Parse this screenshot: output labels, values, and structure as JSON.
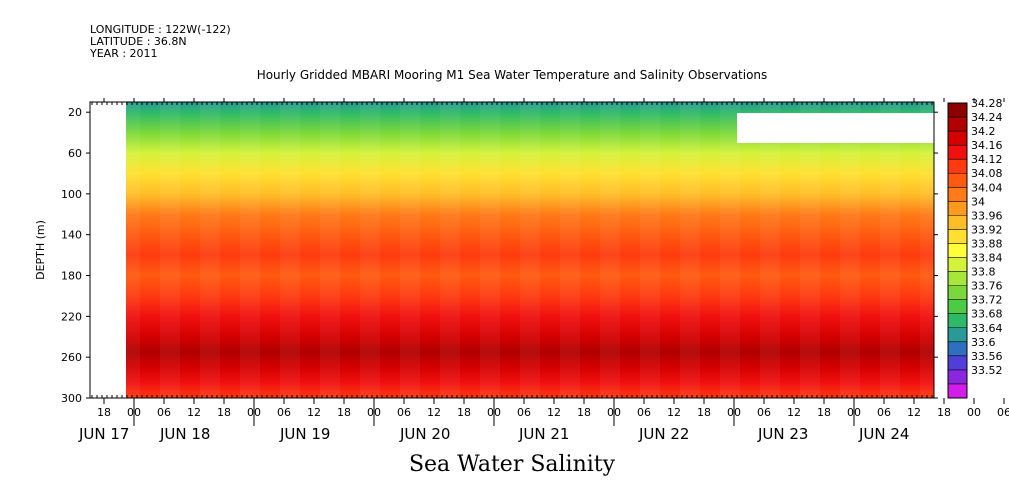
{
  "header": {
    "longitude": "LONGITUDE : 122W(-122)",
    "latitude": "LATITUDE : 36.8N",
    "year": "YEAR : 2011"
  },
  "chart_data": {
    "type": "heatmap",
    "title": "Hourly Gridded MBARI Mooring M1 Sea Water Temperature and Salinity Observations",
    "xlabel": "",
    "ylabel": "DEPTH (m)",
    "footer_label": "Sea Water Salinity",
    "ylim": [
      300,
      10
    ],
    "yticks": [
      20,
      60,
      100,
      140,
      180,
      220,
      260,
      300
    ],
    "x_hour_ticks": [
      "18",
      "00",
      "06",
      "12",
      "18",
      "00",
      "06",
      "12",
      "18",
      "00",
      "06",
      "12",
      "18",
      "00",
      "06",
      "12",
      "18",
      "00",
      "06",
      "12",
      "18",
      "00",
      "06",
      "12",
      "18",
      "00",
      "06",
      "12",
      "18",
      "00",
      "06",
      "12"
    ],
    "x_date_labels": [
      "JUN 17",
      "JUN 18",
      "JUN 19",
      "JUN 20",
      "JUN 21",
      "JUN 22",
      "JUN 23",
      "JUN 24"
    ],
    "colorbar": {
      "levels": [
        34.28,
        34.24,
        34.2,
        34.16,
        34.12,
        34.08,
        34.04,
        34,
        33.96,
        33.92,
        33.88,
        33.84,
        33.8,
        33.76,
        33.72,
        33.68,
        33.64,
        33.6,
        33.56,
        33.52
      ],
      "colors": [
        "#8c0000",
        "#b00000",
        "#d40000",
        "#f01010",
        "#ff3a10",
        "#ff5a10",
        "#ff7a18",
        "#ff9a1e",
        "#ffbe28",
        "#ffe030",
        "#ffff3a",
        "#d4f23a",
        "#a8e63a",
        "#7ad83a",
        "#4ecb44",
        "#2eb86a",
        "#2a9a98",
        "#2f6fc2",
        "#4f3ed8",
        "#8a26e0",
        "#d11ee8"
      ]
    },
    "profile": [
      {
        "depth": 10,
        "value": 33.66
      },
      {
        "depth": 20,
        "value": 33.7
      },
      {
        "depth": 40,
        "value": 33.78
      },
      {
        "depth": 60,
        "value": 33.85
      },
      {
        "depth": 80,
        "value": 33.93
      },
      {
        "depth": 100,
        "value": 33.99
      },
      {
        "depth": 120,
        "value": 34.05
      },
      {
        "depth": 140,
        "value": 34.09
      },
      {
        "depth": 160,
        "value": 34.12
      },
      {
        "depth": 180,
        "value": 34.11
      },
      {
        "depth": 200,
        "value": 34.13
      },
      {
        "depth": 220,
        "value": 34.17
      },
      {
        "depth": 240,
        "value": 34.21
      },
      {
        "depth": 255,
        "value": 34.25
      },
      {
        "depth": 270,
        "value": 34.22
      },
      {
        "depth": 285,
        "value": 34.18
      },
      {
        "depth": 300,
        "value": 34.15
      }
    ]
  }
}
